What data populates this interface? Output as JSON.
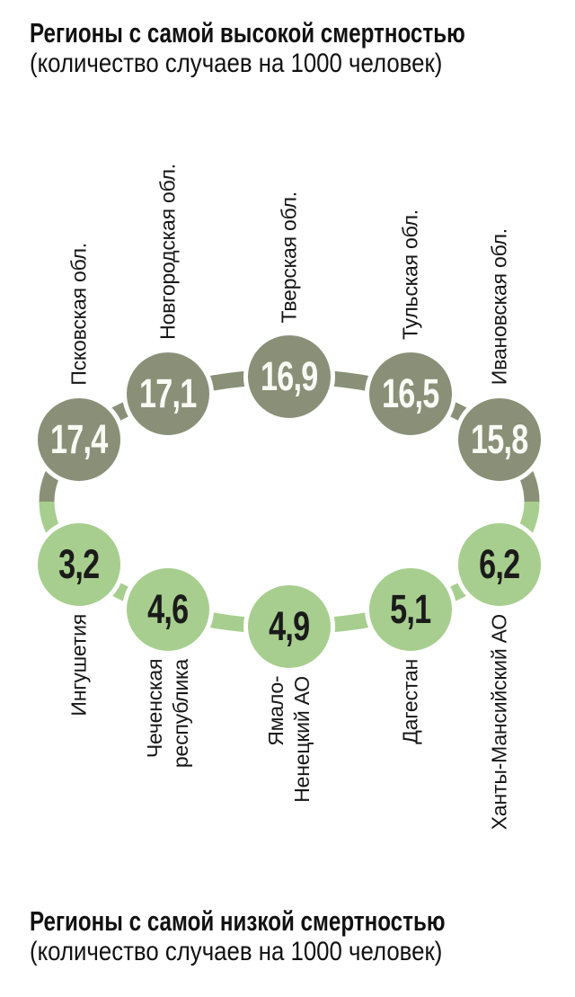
{
  "header_high": {
    "title": "Регионы с самой высокой смертностью",
    "subtitle": "(количество случаев на 1000 человек)"
  },
  "header_low": {
    "title": "Регионы с самой низкой смертностью",
    "subtitle": "(количество случаев на 1000 человек)"
  },
  "colors": {
    "high": "#8a9078",
    "low": "#a7ce8e",
    "high_value_text": "#fbfbf6",
    "low_value_text": "#1b1b1b"
  },
  "chart_data": {
    "type": "circular-infographic",
    "units": "случаев на 1000 человек",
    "legend_position": "none",
    "series": [
      {
        "name": "Регионы с самой высокой смертностью",
        "color": "#8a9078",
        "points": [
          {
            "region": "Псковская обл.",
            "value": "17,4",
            "value_num": 17.4
          },
          {
            "region": "Новгородская обл.",
            "value": "17,1",
            "value_num": 17.1
          },
          {
            "region": "Тверская обл.",
            "value": "16,9",
            "value_num": 16.9
          },
          {
            "region": "Тульская обл.",
            "value": "16,5",
            "value_num": 16.5
          },
          {
            "region": "Ивановская обл.",
            "value": "15,8",
            "value_num": 15.8
          }
        ]
      },
      {
        "name": "Регионы с самой низкой смертностью",
        "color": "#a7ce8e",
        "points": [
          {
            "region": "Ингушетия",
            "value": "3,2",
            "value_num": 3.2
          },
          {
            "region": "Чеченская\nреспублика",
            "value": "4,6",
            "value_num": 4.6
          },
          {
            "region": "Ямало-\nНенецкий АО",
            "value": "4,9",
            "value_num": 4.9
          },
          {
            "region": "Дагестан",
            "value": "5,1",
            "value_num": 5.1
          },
          {
            "region": "Ханты-Мансийский АО",
            "value": "6,2",
            "value_num": 6.2
          }
        ]
      }
    ]
  }
}
